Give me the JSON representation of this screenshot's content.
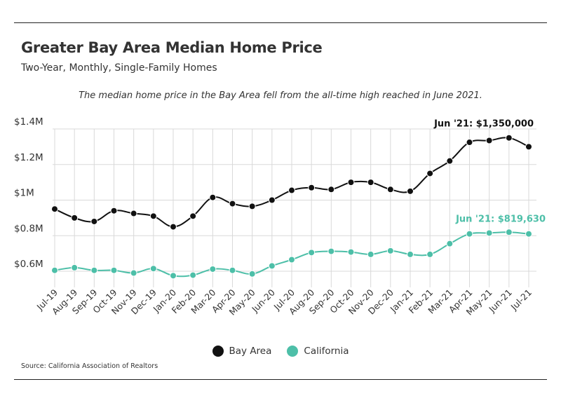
{
  "header": {
    "title": "Greater Bay Area Median Home Price",
    "subtitle": "Two-Year, Monthly, Single-Family Homes",
    "note": "The median home price in the Bay Area fell from the all-time high reached in June 2021."
  },
  "footer": {
    "source": "Source:  California Association of Realtors"
  },
  "colors": {
    "bay_area": "#111111",
    "california": "#4dbfa8",
    "grid": "#d9d9d9"
  },
  "chart_data": {
    "type": "line",
    "title": "Greater Bay Area Median Home Price",
    "subtitle": "Two-Year, Monthly, Single-Family Homes",
    "xlabel": "",
    "ylabel": "",
    "ylim": [
      0.5,
      1.4
    ],
    "yticks": [
      {
        "value": 0.6,
        "label": "$0.6M"
      },
      {
        "value": 0.8,
        "label": "$0.8M"
      },
      {
        "value": 1.0,
        "label": "$1M"
      },
      {
        "value": 1.2,
        "label": "$1.2M"
      },
      {
        "value": 1.4,
        "label": "$1.4M"
      }
    ],
    "grid": true,
    "legend_position": "bottom",
    "categories": [
      "Jul-19",
      "Aug-19",
      "Sep-19",
      "Oct-19",
      "Nov-19",
      "Dec-19",
      "Jan-20",
      "Feb-20",
      "Mar-20",
      "Apr-20",
      "May-20",
      "Jun-20",
      "Jul-20",
      "Aug-20",
      "Sep-20",
      "Oct-20",
      "Nov-20",
      "Dec-20",
      "Jan-21",
      "Feb-21",
      "Mar-21",
      "Apr-21",
      "May-21",
      "Jun-21",
      "Jul-21"
    ],
    "series": [
      {
        "name": "Bay Area",
        "color": "#111111",
        "values": [
          0.95,
          0.9,
          0.88,
          0.94,
          0.925,
          0.91,
          0.85,
          0.91,
          1.015,
          0.98,
          0.965,
          1.0,
          1.055,
          1.07,
          1.06,
          1.1,
          1.1,
          1.06,
          1.05,
          1.15,
          1.22,
          1.325,
          1.335,
          1.35,
          1.3
        ]
      },
      {
        "name": "California",
        "color": "#4dbfa8",
        "values": [
          0.605,
          0.62,
          0.605,
          0.605,
          0.59,
          0.615,
          0.575,
          0.578,
          0.612,
          0.605,
          0.585,
          0.63,
          0.665,
          0.705,
          0.712,
          0.708,
          0.695,
          0.715,
          0.695,
          0.695,
          0.755,
          0.81,
          0.815,
          0.81963,
          0.81
        ]
      }
    ],
    "annotations": [
      {
        "series": "Bay Area",
        "category": "Jun-21",
        "text": "Jun '21: $1,350,000"
      },
      {
        "series": "California",
        "category": "Jun-21",
        "text": "Jun '21: $819,630"
      }
    ]
  }
}
